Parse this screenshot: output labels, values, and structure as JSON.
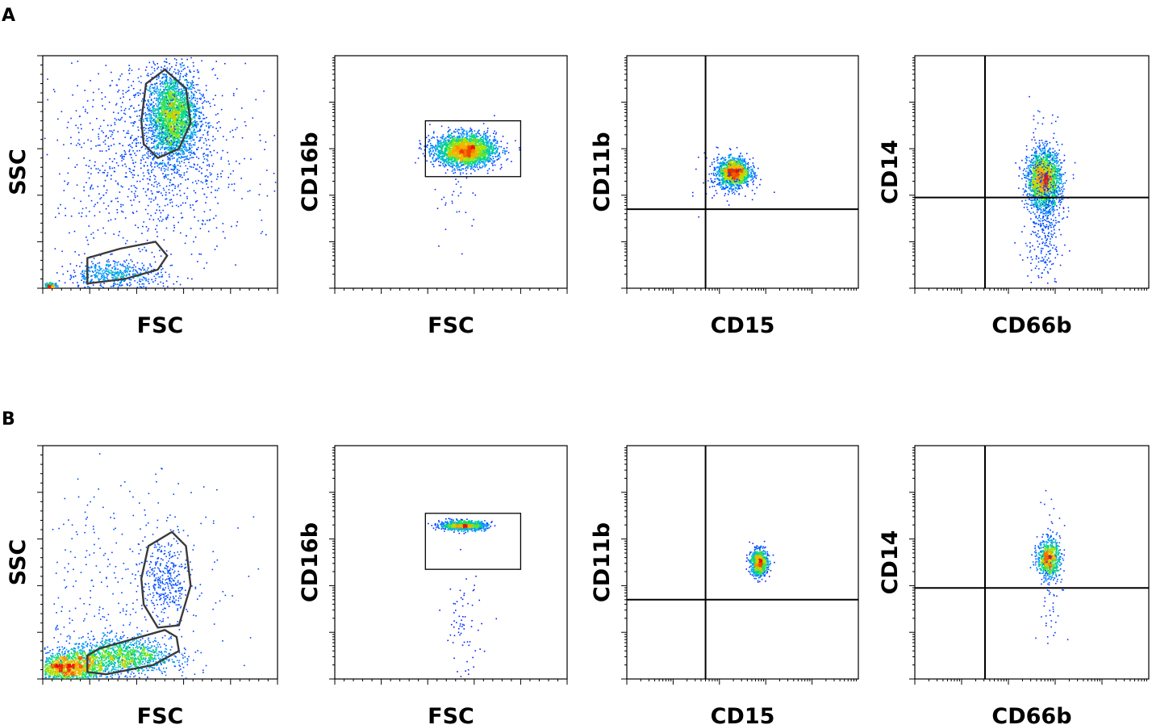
{
  "panels": [
    {
      "label": "A",
      "plots": [
        {
          "type": "scatter",
          "xlabel": "FSC",
          "ylabel": "SSC",
          "scale": "linear",
          "gates": [
            {
              "shape": "polygon",
              "points": [
                [
                  0.43,
                  0.62
                ],
                [
                  0.49,
                  0.56
                ],
                [
                  0.58,
                  0.6
                ],
                [
                  0.63,
                  0.71
                ],
                [
                  0.61,
                  0.86
                ],
                [
                  0.52,
                  0.94
                ],
                [
                  0.44,
                  0.88
                ],
                [
                  0.42,
                  0.72
                ]
              ]
            },
            {
              "shape": "polygon",
              "points": [
                [
                  0.19,
                  0.13
                ],
                [
                  0.33,
                  0.17
                ],
                [
                  0.48,
                  0.2
                ],
                [
                  0.53,
                  0.14
                ],
                [
                  0.49,
                  0.08
                ],
                [
                  0.35,
                  0.04
                ],
                [
                  0.19,
                  0.02
                ]
              ]
            }
          ],
          "populations": [
            {
              "cx": 0.55,
              "cy": 0.74,
              "sx": 0.055,
              "sy": 0.095,
              "n": 2600
            },
            {
              "cx": 0.47,
              "cy": 0.55,
              "sx": 0.2,
              "sy": 0.22,
              "n": 1100,
              "weak": true
            },
            {
              "cx": 0.3,
              "cy": 0.06,
              "sx": 0.1,
              "sy": 0.03,
              "n": 500
            },
            {
              "cx": 0.03,
              "cy": 0.01,
              "sx": 0.015,
              "sy": 0.008,
              "n": 180
            }
          ]
        },
        {
          "type": "scatter",
          "xlabel": "FSC",
          "ylabel": "CD16b",
          "scale": "log-y",
          "gates": [
            {
              "shape": "rect",
              "x": [
                0.39,
                0.8
              ],
              "y": [
                0.48,
                0.72
              ]
            }
          ],
          "populations": [
            {
              "cx": 0.56,
              "cy": 0.595,
              "sx": 0.065,
              "sy": 0.035,
              "n": 2600
            },
            {
              "cx": 0.53,
              "cy": 0.38,
              "sx": 0.05,
              "sy": 0.09,
              "n": 30,
              "weak": true
            }
          ]
        },
        {
          "type": "scatter",
          "xlabel": "CD15",
          "ylabel": "CD11b",
          "scale": "log-log",
          "quadrant": {
            "x": 0.34,
            "y": 0.34
          },
          "populations": [
            {
              "cx": 0.46,
              "cy": 0.5,
              "sx": 0.035,
              "sy": 0.03,
              "n": 1500
            },
            {
              "cx": 0.42,
              "cy": 0.47,
              "sx": 0.05,
              "sy": 0.06,
              "n": 80,
              "weak": true
            }
          ]
        },
        {
          "type": "scatter",
          "xlabel": "CD66b",
          "ylabel": "CD14",
          "scale": "log-log",
          "quadrant": {
            "x": 0.3,
            "y": 0.39
          },
          "populations": [
            {
              "cx": 0.55,
              "cy": 0.47,
              "sx": 0.035,
              "sy": 0.06,
              "n": 1800
            },
            {
              "cx": 0.55,
              "cy": 0.35,
              "sx": 0.04,
              "sy": 0.16,
              "n": 500,
              "weak": true
            }
          ]
        }
      ]
    },
    {
      "label": "B",
      "plots": [
        {
          "type": "scatter",
          "xlabel": "FSC",
          "ylabel": "SSC",
          "scale": "linear",
          "gates": [
            {
              "shape": "polygon",
              "points": [
                [
                  0.43,
                  0.32
                ],
                [
                  0.49,
                  0.22
                ],
                [
                  0.58,
                  0.23
                ],
                [
                  0.63,
                  0.4
                ],
                [
                  0.61,
                  0.57
                ],
                [
                  0.55,
                  0.63
                ],
                [
                  0.45,
                  0.57
                ],
                [
                  0.42,
                  0.43
                ]
              ]
            },
            {
              "shape": "polygon",
              "points": [
                [
                  0.19,
                  0.03
                ],
                [
                  0.27,
                  0.02
                ],
                [
                  0.47,
                  0.06
                ],
                [
                  0.58,
                  0.12
                ],
                [
                  0.57,
                  0.18
                ],
                [
                  0.52,
                  0.21
                ],
                [
                  0.24,
                  0.13
                ],
                [
                  0.19,
                  0.1
                ]
              ]
            }
          ],
          "populations": [
            {
              "cx": 0.1,
              "cy": 0.05,
              "sx": 0.08,
              "sy": 0.035,
              "n": 1500
            },
            {
              "cx": 0.33,
              "cy": 0.1,
              "sx": 0.11,
              "sy": 0.04,
              "n": 1200
            },
            {
              "cx": 0.52,
              "cy": 0.42,
              "sx": 0.05,
              "sy": 0.1,
              "n": 350,
              "weak": true
            },
            {
              "cx": 0.35,
              "cy": 0.35,
              "sx": 0.22,
              "sy": 0.25,
              "n": 350,
              "weak": true
            }
          ]
        },
        {
          "type": "scatter",
          "xlabel": "FSC",
          "ylabel": "CD16b",
          "scale": "log-y",
          "gates": [
            {
              "shape": "rect",
              "x": [
                0.39,
                0.8
              ],
              "y": [
                0.47,
                0.71
              ]
            }
          ],
          "populations": [
            {
              "cx": 0.55,
              "cy": 0.66,
              "sx": 0.05,
              "sy": 0.01,
              "n": 900
            },
            {
              "cx": 0.55,
              "cy": 0.22,
              "sx": 0.04,
              "sy": 0.12,
              "n": 70,
              "weak": true
            }
          ]
        },
        {
          "type": "scatter",
          "xlabel": "CD15",
          "ylabel": "CD11b",
          "scale": "log-log",
          "quadrant": {
            "x": 0.34,
            "y": 0.34
          },
          "populations": [
            {
              "cx": 0.57,
              "cy": 0.5,
              "sx": 0.018,
              "sy": 0.028,
              "n": 900
            }
          ]
        },
        {
          "type": "scatter",
          "xlabel": "CD66b",
          "ylabel": "CD14",
          "scale": "log-log",
          "quadrant": {
            "x": 0.3,
            "y": 0.39
          },
          "populations": [
            {
              "cx": 0.57,
              "cy": 0.52,
              "sx": 0.024,
              "sy": 0.04,
              "n": 750
            },
            {
              "cx": 0.58,
              "cy": 0.45,
              "sx": 0.03,
              "sy": 0.16,
              "n": 80,
              "weak": true
            }
          ]
        }
      ]
    }
  ],
  "chart_data": [
    {
      "panel": "A",
      "type": "scatter",
      "xlabel": "FSC",
      "ylabel": "SSC"
    },
    {
      "panel": "A",
      "type": "scatter",
      "xlabel": "FSC",
      "ylabel": "CD16b"
    },
    {
      "panel": "A",
      "type": "scatter",
      "xlabel": "CD15",
      "ylabel": "CD11b"
    },
    {
      "panel": "A",
      "type": "scatter",
      "xlabel": "CD66b",
      "ylabel": "CD14"
    },
    {
      "panel": "B",
      "type": "scatter",
      "xlabel": "FSC",
      "ylabel": "SSC"
    },
    {
      "panel": "B",
      "type": "scatter",
      "xlabel": "FSC",
      "ylabel": "CD16b"
    },
    {
      "panel": "B",
      "type": "scatter",
      "xlabel": "CD15",
      "ylabel": "CD11b"
    },
    {
      "panel": "B",
      "type": "scatter",
      "xlabel": "CD66b",
      "ylabel": "CD14"
    }
  ]
}
